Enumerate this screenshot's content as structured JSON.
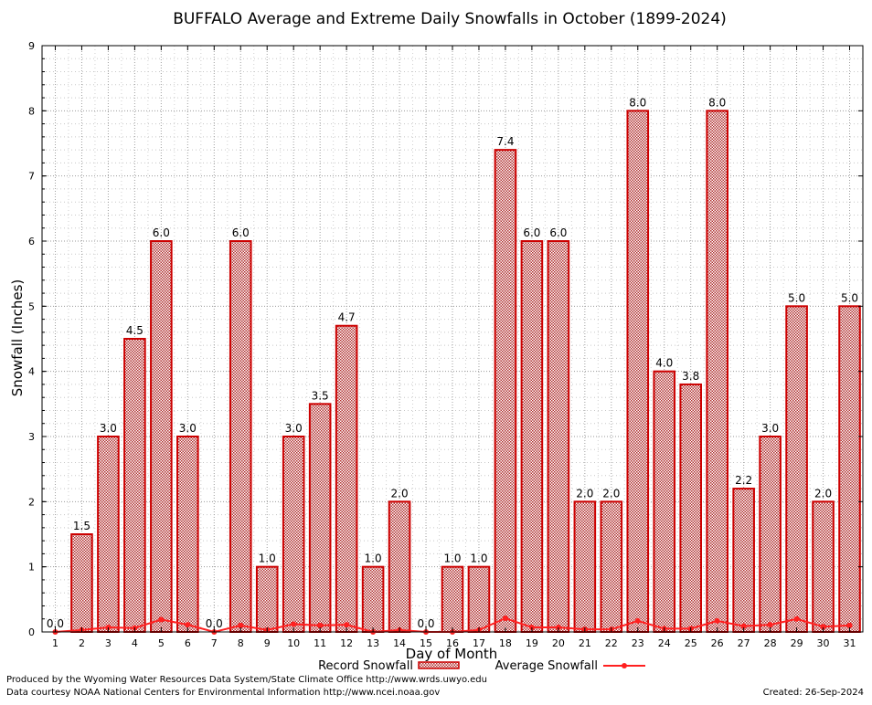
{
  "chart_data": {
    "type": "bar",
    "title": "BUFFALO Average and Extreme Daily Snowfalls in October (1899-2024)",
    "xlabel": "Day of Month",
    "ylabel": "Snowfall (Inches)",
    "ylim": [
      0,
      9
    ],
    "yticks": [
      "0",
      "1",
      "2",
      "3",
      "4",
      "5",
      "6",
      "7",
      "8",
      "9"
    ],
    "grid": true,
    "categories": [
      "1",
      "2",
      "3",
      "4",
      "5",
      "6",
      "7",
      "8",
      "9",
      "10",
      "11",
      "12",
      "13",
      "14",
      "15",
      "16",
      "17",
      "18",
      "19",
      "20",
      "21",
      "22",
      "23",
      "24",
      "25",
      "26",
      "27",
      "28",
      "29",
      "30",
      "31"
    ],
    "series": [
      {
        "name": "Record Snowfall",
        "kind": "bar",
        "color": "#cc0000",
        "values": [
          0.0,
          1.5,
          3.0,
          4.5,
          6.0,
          3.0,
          0.0,
          6.0,
          1.0,
          3.0,
          3.5,
          4.7,
          1.0,
          2.0,
          0.0,
          1.0,
          1.0,
          7.4,
          6.0,
          6.0,
          2.0,
          2.0,
          8.0,
          4.0,
          3.8,
          8.0,
          2.2,
          3.0,
          5.0,
          2.0,
          5.0
        ],
        "labels": [
          "0.0",
          "1.5",
          "3.0",
          "4.5",
          "6.0",
          "3.0",
          "0.0",
          "6.0",
          "1.0",
          "3.0",
          "3.5",
          "4.7",
          "1.0",
          "2.0",
          "0.0",
          "1.0",
          "1.0",
          "7.4",
          "6.0",
          "6.0",
          "2.0",
          "2.0",
          "8.0",
          "4.0",
          "3.8",
          "8.0",
          "2.2",
          "3.0",
          "5.0",
          "2.0",
          "5.0"
        ]
      },
      {
        "name": "Average Snowfall",
        "kind": "line",
        "color": "#ff2020",
        "values": [
          0.0,
          0.03,
          0.07,
          0.06,
          0.19,
          0.11,
          0.0,
          0.1,
          0.03,
          0.12,
          0.1,
          0.11,
          0.0,
          0.03,
          0.0,
          0.0,
          0.03,
          0.21,
          0.07,
          0.07,
          0.04,
          0.04,
          0.17,
          0.05,
          0.05,
          0.17,
          0.09,
          0.11,
          0.2,
          0.08,
          0.1
        ]
      }
    ],
    "legend": "bottom"
  },
  "footer": {
    "producer": "Produced by the Wyoming Water Resources Data System/State Climate Office http://www.wrds.uwyo.edu",
    "courtesy": "Data courtesy NOAA National Centers for Environmental Information http://www.ncei.noaa.gov",
    "created": "Created:  26-Sep-2024"
  }
}
